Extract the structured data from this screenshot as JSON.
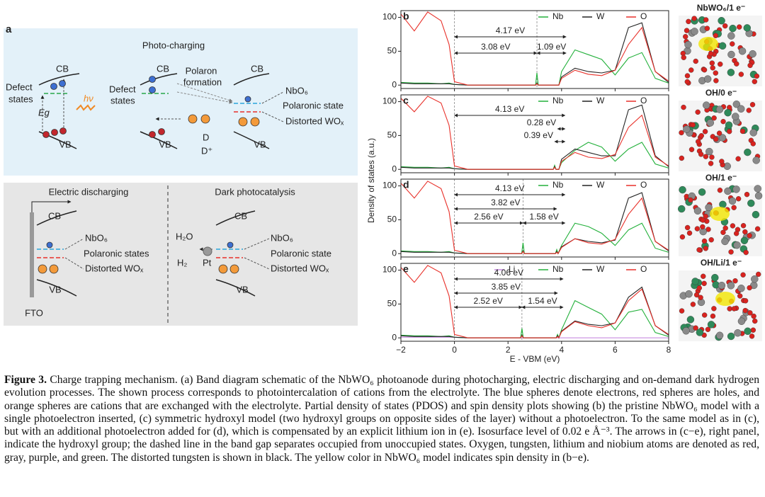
{
  "schematic": {
    "panel": "a",
    "labels": [
      "Photo-charging",
      "CB",
      "Defect",
      "states",
      "Eg",
      "hν",
      "VB",
      "CB",
      "Polaron",
      "formation",
      "Defect",
      "states",
      "VB",
      "D",
      "D⁺",
      "CB",
      "NbO₆",
      "Polaronic state",
      "Distorted WOₓ",
      "VB",
      "Electric discharging",
      "Dark photocatalysis",
      "CB",
      "NbO₆",
      "Polaronic states",
      "Distorted WOₓ",
      "VB",
      "FTO",
      "CB",
      "H₂O",
      "H₂",
      "Pt",
      "NbO₆",
      "Polaronic state",
      "Distorted WOₓ",
      "VB"
    ]
  },
  "dos_axes": {
    "y_label": "Density of states (a.u.)",
    "x_label": "E - VBM (eV)"
  },
  "chart_data": [
    {
      "type": "line",
      "panel": "b",
      "x": [
        -2,
        -1.5,
        -1,
        -0.5,
        -0.2,
        0,
        0.5,
        3.03,
        3.08,
        3.13,
        3.9,
        4,
        4.5,
        5,
        5.5,
        6,
        6.5,
        7,
        7.5,
        8
      ],
      "series": [
        {
          "name": "Nb",
          "color": "#22b03a",
          "values": [
            4,
            3,
            3,
            2,
            3,
            1,
            0,
            0,
            18,
            0,
            0,
            20,
            52,
            45,
            38,
            15,
            40,
            48,
            10,
            3
          ]
        },
        {
          "name": "W",
          "color": "#222222",
          "values": [
            3,
            2,
            2,
            2,
            2,
            1,
            0,
            0,
            3,
            0,
            0,
            12,
            25,
            20,
            18,
            22,
            85,
            92,
            20,
            4
          ]
        },
        {
          "name": "O",
          "color": "#e8312a",
          "values": [
            105,
            80,
            108,
            95,
            60,
            5,
            0,
            0,
            2,
            0,
            0,
            10,
            22,
            16,
            14,
            22,
            60,
            85,
            20,
            6
          ]
        }
      ],
      "xlim": [
        -2,
        8
      ],
      "xticks": [
        -2,
        0,
        2,
        4,
        6,
        8
      ],
      "ylim": [
        -5,
        110
      ],
      "yticks": [
        0,
        50,
        100
      ],
      "vlines": [
        0,
        3.08
      ],
      "annotations": [
        {
          "label": "4.17 eV",
          "from": 0,
          "to": 4.17
        },
        {
          "label": "3.08 eV",
          "from": 0,
          "to": 3.08
        },
        {
          "label": "1.09 eV",
          "from": 3.08,
          "to": 4.17
        }
      ]
    },
    {
      "type": "line",
      "panel": "c",
      "x": [
        -2,
        -1.5,
        -1,
        -0.5,
        -0.2,
        0,
        0.5,
        3.69,
        3.74,
        3.79,
        3.9,
        4,
        4.5,
        5,
        5.5,
        6,
        6.5,
        7,
        7.5,
        8
      ],
      "series": [
        {
          "name": "Nb",
          "color": "#22b03a",
          "values": [
            4,
            3,
            3,
            2,
            3,
            1,
            0,
            0,
            6,
            0,
            0,
            10,
            28,
            40,
            33,
            12,
            30,
            40,
            8,
            2
          ]
        },
        {
          "name": "W",
          "color": "#222222",
          "values": [
            3,
            2,
            2,
            2,
            2,
            1,
            0,
            0,
            4,
            0,
            0,
            15,
            30,
            25,
            20,
            20,
            88,
            95,
            20,
            4
          ]
        },
        {
          "name": "O",
          "color": "#e8312a",
          "values": [
            105,
            85,
            108,
            98,
            65,
            5,
            0,
            0,
            3,
            0,
            0,
            12,
            25,
            18,
            16,
            22,
            62,
            80,
            18,
            5
          ]
        }
      ],
      "xlim": [
        -2,
        8
      ],
      "xticks": [
        -2,
        0,
        2,
        4,
        6,
        8
      ],
      "ylim": [
        -5,
        110
      ],
      "yticks": [
        0,
        50,
        100
      ],
      "vlines": [
        0
      ],
      "annotations": [
        {
          "label": "4.13 eV",
          "from": 0,
          "to": 4.13
        },
        {
          "label": "0.28 eV",
          "from": 3.85,
          "to": 4.13
        },
        {
          "label": "0.39 eV",
          "from": 3.74,
          "to": 4.13
        }
      ]
    },
    {
      "type": "line",
      "panel": "d",
      "x": [
        -2,
        -1.5,
        -1,
        -0.5,
        -0.2,
        0,
        0.5,
        2.51,
        2.56,
        2.61,
        3.77,
        3.82,
        3.87,
        4,
        4.5,
        5,
        5.5,
        6,
        6.5,
        7,
        7.5,
        8
      ],
      "series": [
        {
          "name": "Nb",
          "color": "#22b03a",
          "values": [
            4,
            3,
            3,
            2,
            3,
            1,
            0,
            0,
            16,
            0,
            0,
            6,
            0,
            12,
            45,
            40,
            30,
            12,
            35,
            45,
            8,
            2
          ]
        },
        {
          "name": "W",
          "color": "#222222",
          "values": [
            3,
            2,
            2,
            2,
            2,
            1,
            0,
            0,
            4,
            0,
            0,
            3,
            0,
            10,
            22,
            18,
            16,
            20,
            82,
            90,
            18,
            4
          ]
        },
        {
          "name": "O",
          "color": "#e8312a",
          "values": [
            104,
            82,
            107,
            96,
            62,
            5,
            0,
            0,
            3,
            0,
            0,
            2,
            0,
            9,
            22,
            16,
            14,
            21,
            58,
            82,
            18,
            5
          ]
        }
      ],
      "xlim": [
        -2,
        8
      ],
      "xticks": [
        -2,
        0,
        2,
        4,
        6,
        8
      ],
      "ylim": [
        -5,
        110
      ],
      "yticks": [
        0,
        50,
        100
      ],
      "vlines": [
        0,
        2.56
      ],
      "annotations": [
        {
          "label": "4.13 eV",
          "from": 0,
          "to": 4.13
        },
        {
          "label": "3.82 eV",
          "from": 0,
          "to": 3.82
        },
        {
          "label": "2.56 eV",
          "from": 0,
          "to": 2.56
        },
        {
          "label": "1.58 eV",
          "from": 2.56,
          "to": 4.13
        }
      ]
    },
    {
      "type": "line",
      "panel": "e",
      "x": [
        -2,
        -1.5,
        -1,
        -0.5,
        -0.2,
        0,
        0.5,
        2.47,
        2.52,
        2.57,
        3.8,
        3.85,
        3.9,
        4,
        4.5,
        5,
        5.5,
        6,
        6.5,
        7,
        7.5,
        8
      ],
      "series": [
        {
          "name": "Li",
          "color": "#c88be0",
          "values": [
            1,
            1,
            1,
            1,
            1,
            1,
            0,
            0,
            0,
            0,
            0,
            0,
            0,
            0,
            0,
            0,
            0,
            0,
            0,
            0,
            0,
            0
          ]
        },
        {
          "name": "Nb",
          "color": "#22b03a",
          "values": [
            4,
            3,
            3,
            2,
            3,
            1,
            0,
            0,
            14,
            0,
            0,
            5,
            0,
            12,
            55,
            45,
            35,
            12,
            38,
            42,
            8,
            2
          ]
        },
        {
          "name": "W",
          "color": "#222222",
          "values": [
            3,
            2,
            2,
            2,
            2,
            1,
            0,
            0,
            4,
            0,
            0,
            3,
            0,
            10,
            25,
            20,
            18,
            22,
            60,
            75,
            18,
            4
          ]
        },
        {
          "name": "O",
          "color": "#e8312a",
          "values": [
            104,
            82,
            107,
            96,
            62,
            5,
            0,
            0,
            3,
            0,
            0,
            2,
            0,
            9,
            24,
            18,
            15,
            22,
            55,
            72,
            18,
            5
          ]
        }
      ],
      "xlim": [
        -2,
        8
      ],
      "xticks": [
        {
          "value": -2,
          "label": "−2"
        },
        0,
        2,
        4,
        6,
        8
      ],
      "ylim": [
        -5,
        110
      ],
      "yticks": [
        0,
        50,
        100
      ],
      "vlines": [
        0,
        2.52
      ],
      "annotations": [
        {
          "label": "4.06 eV",
          "from": 0,
          "to": 4.06
        },
        {
          "label": "3.85 eV",
          "from": 0,
          "to": 3.85
        },
        {
          "label": "2.52 eV",
          "from": 0,
          "to": 2.52
        },
        {
          "label": "1.54 eV",
          "from": 2.52,
          "to": 4.06
        }
      ]
    }
  ],
  "structures": [
    {
      "label": "NbWO₆/1 e⁻"
    },
    {
      "label": "OH/0 e⁻"
    },
    {
      "label": "OH/1 e⁻"
    },
    {
      "label": "OH/Li/1 e⁻"
    }
  ],
  "caption": {
    "figure_label": "Figure 3.",
    "text": " Charge trapping mechanism. (a) Band diagram schematic of the NbWO₆ photoanode during photocharging, electric discharging and on-demand dark hydrogen evolution processes. The shown process corresponds to photointercalation of cations from the electrolyte. The blue spheres denote electrons, red spheres are holes, and orange spheres are cations that are exchanged with the electrolyte. Partial density of states (PDOS) and spin density plots showing (b) the pristine NbWO₆ model with a single photoelectron inserted, (c) symmetric hydroxyl model (two hydroxyl groups on opposite sides of the layer) without a photoelectron. To the same model as in (c), but with an additional photoelectron added for (d), which is compensated by an explicit lithium ion in (e). Isosurface level of 0.02 e Å⁻³. The arrows in (c−e), right panel, indicate the hydroxyl group; the dashed line in the band gap separates occupied from unoccupied states. Oxygen, tungsten, lithium and niobium atoms are denoted as red, gray, purple, and green. The distorted tungsten is shown in black. The yellow color in NbWO₆ model indicates spin density in (b−e)."
  }
}
